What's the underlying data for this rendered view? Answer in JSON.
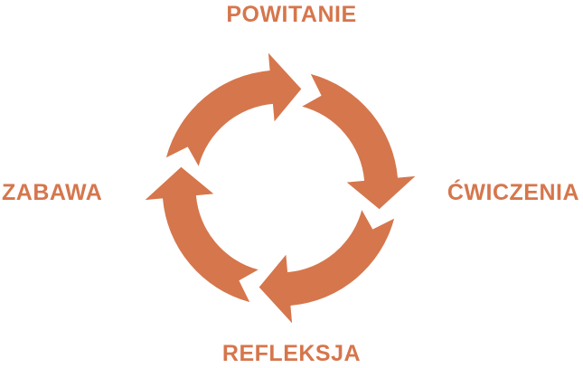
{
  "diagram": {
    "accent_color": "#d6764c",
    "steps": [
      {
        "label": "POWITANIE"
      },
      {
        "label": "ĆWICZENIA"
      },
      {
        "label": "REFLEKSJA"
      },
      {
        "label": "ZABAWA"
      }
    ]
  }
}
